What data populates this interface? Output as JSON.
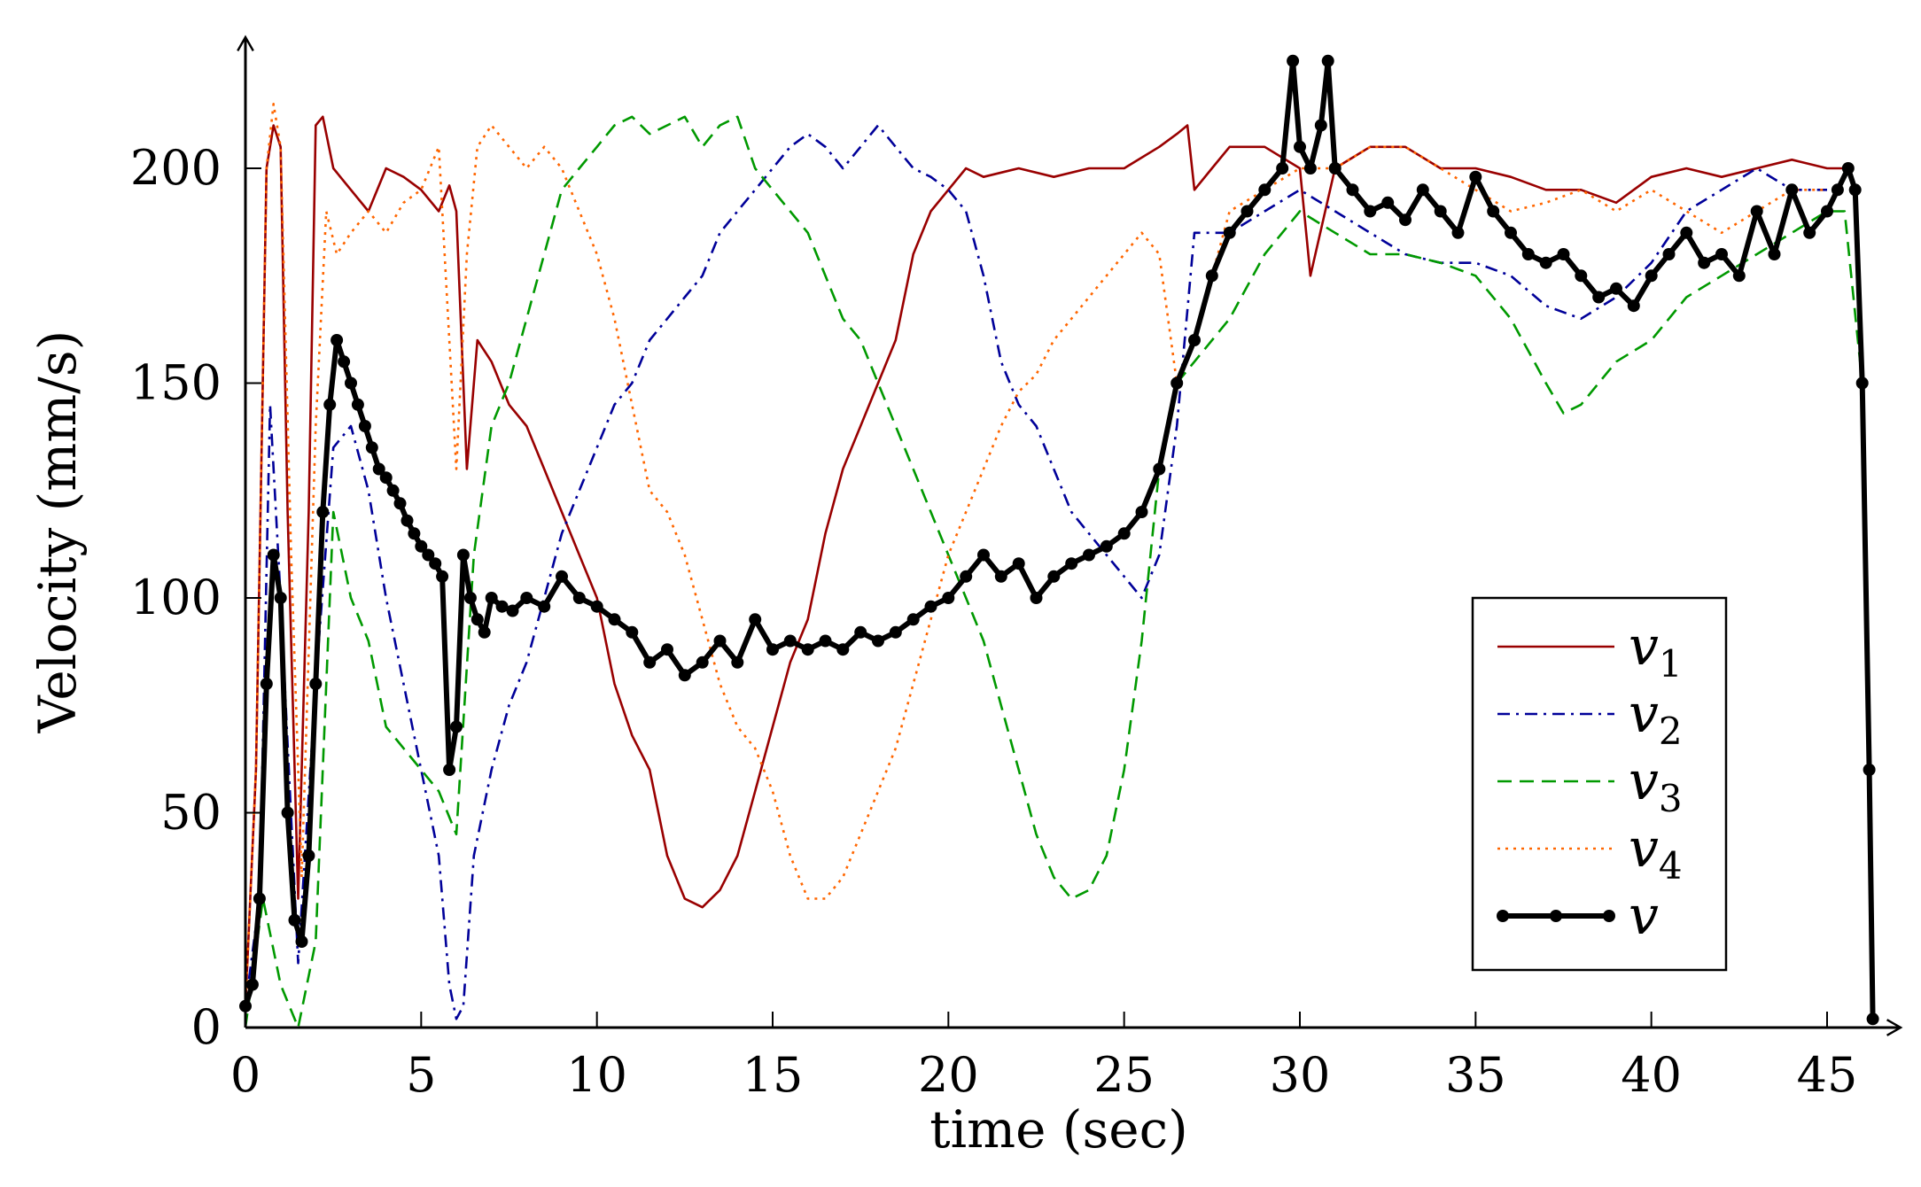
{
  "chart_data": {
    "type": "line",
    "title": "",
    "xlabel": "time (sec)",
    "ylabel": "Velocity (mm/s)",
    "xlim": [
      0,
      47
    ],
    "ylim": [
      0,
      220
    ],
    "xticks": [
      0,
      5,
      10,
      15,
      20,
      25,
      30,
      35,
      40,
      45
    ],
    "yticks": [
      0,
      50,
      100,
      150,
      200
    ],
    "legend_position": "bottom-right",
    "series": [
      {
        "name": "v1",
        "label_main": "v",
        "label_sub": "1",
        "color": "#990000",
        "style": "solid",
        "x": [
          0,
          0.3,
          0.6,
          0.8,
          1.0,
          1.2,
          1.5,
          1.8,
          2.0,
          2.2,
          2.5,
          3.0,
          3.5,
          4.0,
          4.5,
          5.0,
          5.5,
          5.8,
          6.0,
          6.3,
          6.6,
          7.0,
          7.5,
          8.0,
          8.5,
          9.0,
          9.5,
          10.0,
          10.5,
          11.0,
          11.5,
          12.0,
          12.5,
          13.0,
          13.5,
          14.0,
          14.5,
          15.0,
          15.5,
          16.0,
          16.5,
          17.0,
          17.5,
          18.0,
          18.5,
          19.0,
          19.5,
          20.0,
          20.5,
          21.0,
          22.0,
          23.0,
          24.0,
          25.0,
          26.0,
          26.5,
          26.8,
          27.0,
          27.5,
          28.0,
          29.0,
          30.0,
          30.3,
          31.0,
          32.0,
          33.0,
          34.0,
          35.0,
          36.0,
          37.0,
          38.0,
          39.0,
          40.0,
          41.0,
          42.0,
          43.0,
          44.0,
          45.0,
          45.5
        ],
        "y": [
          5,
          60,
          200,
          210,
          205,
          120,
          30,
          120,
          210,
          212,
          200,
          195,
          190,
          200,
          198,
          195,
          190,
          196,
          190,
          130,
          160,
          155,
          145,
          140,
          130,
          120,
          110,
          100,
          80,
          68,
          60,
          40,
          30,
          28,
          32,
          40,
          55,
          70,
          85,
          95,
          115,
          130,
          140,
          150,
          160,
          180,
          190,
          195,
          200,
          198,
          200,
          198,
          200,
          200,
          205,
          208,
          210,
          195,
          200,
          205,
          205,
          200,
          175,
          200,
          205,
          205,
          200,
          200,
          198,
          195,
          195,
          192,
          198,
          200,
          198,
          200,
          202,
          200,
          200
        ]
      },
      {
        "name": "v2",
        "label_main": "v",
        "label_sub": "2",
        "color": "#000099",
        "style": "dashdot",
        "x": [
          0,
          0.4,
          0.7,
          1.0,
          1.5,
          2.0,
          2.5,
          3.0,
          3.5,
          4.0,
          4.5,
          5.0,
          5.5,
          5.8,
          6.0,
          6.2,
          6.5,
          7.0,
          7.5,
          8.0,
          8.5,
          9.0,
          9.5,
          10.0,
          10.5,
          11.0,
          11.5,
          12.0,
          12.5,
          13.0,
          13.5,
          14.0,
          14.5,
          15.0,
          15.5,
          16.0,
          16.5,
          17.0,
          17.5,
          18.0,
          18.5,
          19.0,
          19.5,
          20.0,
          20.5,
          21.0,
          21.5,
          22.0,
          22.5,
          23.0,
          23.5,
          24.0,
          24.5,
          25.0,
          25.5,
          26.0,
          26.5,
          27.0,
          28.0,
          29.0,
          30.0,
          31.0,
          32.0,
          33.0,
          34.0,
          35.0,
          36.0,
          37.0,
          38.0,
          39.0,
          40.0,
          41.0,
          42.0,
          43.0,
          44.0,
          45.0
        ],
        "y": [
          5,
          30,
          145,
          100,
          15,
          80,
          135,
          140,
          125,
          100,
          80,
          60,
          40,
          10,
          2,
          5,
          40,
          60,
          75,
          85,
          100,
          115,
          125,
          135,
          145,
          150,
          160,
          165,
          170,
          175,
          185,
          190,
          195,
          200,
          205,
          208,
          205,
          200,
          205,
          210,
          205,
          200,
          198,
          195,
          190,
          175,
          155,
          145,
          140,
          130,
          120,
          115,
          110,
          105,
          100,
          110,
          140,
          185,
          185,
          190,
          195,
          190,
          185,
          180,
          178,
          178,
          175,
          168,
          165,
          170,
          178,
          190,
          195,
          200,
          195,
          195
        ]
      },
      {
        "name": "v3",
        "label_main": "v",
        "label_sub": "3",
        "color": "#009900",
        "style": "dashed",
        "x": [
          0,
          0.5,
          1.0,
          1.5,
          2.0,
          2.5,
          3.0,
          3.5,
          4.0,
          4.5,
          5.0,
          5.5,
          6.0,
          6.5,
          7.0,
          7.5,
          8.0,
          8.5,
          9.0,
          9.5,
          10.0,
          10.5,
          11.0,
          11.5,
          12.0,
          12.5,
          13.0,
          13.5,
          14.0,
          14.5,
          15.0,
          15.5,
          16.0,
          16.5,
          17.0,
          17.5,
          18.0,
          18.5,
          19.0,
          19.5,
          20.0,
          20.5,
          21.0,
          21.5,
          22.0,
          22.5,
          23.0,
          23.5,
          24.0,
          24.5,
          25.0,
          25.5,
          26.0,
          26.5,
          27.0,
          28.0,
          29.0,
          30.0,
          31.0,
          32.0,
          33.0,
          34.0,
          35.0,
          36.0,
          37.0,
          37.5,
          38.0,
          39.0,
          40.0,
          41.0,
          42.0,
          43.0,
          44.0,
          45.0,
          45.5,
          46.0
        ],
        "y": [
          0,
          30,
          10,
          0,
          20,
          120,
          100,
          90,
          70,
          65,
          60,
          55,
          45,
          110,
          140,
          150,
          165,
          180,
          195,
          200,
          205,
          210,
          212,
          208,
          210,
          212,
          205,
          210,
          212,
          200,
          195,
          190,
          185,
          175,
          165,
          160,
          150,
          140,
          130,
          120,
          110,
          100,
          90,
          75,
          60,
          45,
          35,
          30,
          32,
          40,
          60,
          90,
          130,
          150,
          155,
          165,
          180,
          190,
          185,
          180,
          180,
          178,
          175,
          165,
          150,
          143,
          145,
          155,
          160,
          170,
          175,
          180,
          185,
          190,
          190,
          150
        ]
      },
      {
        "name": "v4",
        "label_main": "v",
        "label_sub": "4",
        "color": "#ff6600",
        "style": "dotted",
        "x": [
          0,
          0.3,
          0.6,
          0.8,
          1.0,
          1.3,
          1.6,
          2.0,
          2.3,
          2.6,
          3.0,
          3.5,
          4.0,
          4.5,
          5.0,
          5.5,
          6.0,
          6.3,
          6.6,
          7.0,
          7.5,
          8.0,
          8.5,
          9.0,
          9.5,
          10.0,
          10.5,
          11.0,
          11.5,
          12.0,
          12.5,
          13.0,
          13.5,
          14.0,
          14.5,
          15.0,
          15.5,
          16.0,
          16.5,
          17.0,
          17.5,
          18.0,
          18.5,
          19.0,
          19.5,
          20.0,
          20.5,
          21.0,
          21.5,
          22.0,
          22.5,
          23.0,
          23.5,
          24.0,
          24.5,
          25.0,
          25.5,
          26.0,
          26.5,
          27.0,
          28.0,
          29.0,
          30.0,
          31.0,
          32.0,
          33.0,
          34.0,
          35.0,
          36.0,
          37.0,
          38.0,
          39.0,
          40.0,
          41.0,
          42.0,
          43.0,
          44.0,
          45.0
        ],
        "y": [
          5,
          60,
          200,
          215,
          205,
          110,
          35,
          140,
          190,
          180,
          185,
          190,
          185,
          192,
          195,
          205,
          130,
          180,
          205,
          210,
          205,
          200,
          205,
          200,
          190,
          180,
          165,
          145,
          125,
          120,
          110,
          95,
          80,
          70,
          65,
          55,
          40,
          30,
          30,
          35,
          45,
          55,
          65,
          80,
          95,
          110,
          120,
          130,
          140,
          148,
          152,
          160,
          165,
          170,
          175,
          180,
          185,
          180,
          150,
          160,
          190,
          195,
          200,
          200,
          205,
          205,
          200,
          195,
          190,
          192,
          195,
          190,
          195,
          190,
          185,
          190,
          195,
          195
        ]
      },
      {
        "name": "v",
        "label_main": "v",
        "label_sub": "",
        "color": "#000000",
        "style": "solid-marked",
        "x": [
          0,
          0.2,
          0.4,
          0.6,
          0.8,
          1.0,
          1.2,
          1.4,
          1.6,
          1.8,
          2.0,
          2.2,
          2.4,
          2.6,
          2.8,
          3.0,
          3.2,
          3.4,
          3.6,
          3.8,
          4.0,
          4.2,
          4.4,
          4.6,
          4.8,
          5.0,
          5.2,
          5.4,
          5.6,
          5.8,
          6.0,
          6.2,
          6.4,
          6.6,
          6.8,
          7.0,
          7.3,
          7.6,
          8.0,
          8.5,
          9.0,
          9.5,
          10.0,
          10.5,
          11.0,
          11.5,
          12.0,
          12.5,
          13.0,
          13.5,
          14.0,
          14.5,
          15.0,
          15.5,
          16.0,
          16.5,
          17.0,
          17.5,
          18.0,
          18.5,
          19.0,
          19.5,
          20.0,
          20.5,
          21.0,
          21.5,
          22.0,
          22.5,
          23.0,
          23.5,
          24.0,
          24.5,
          25.0,
          25.5,
          26.0,
          26.5,
          27.0,
          27.5,
          28.0,
          28.5,
          29.0,
          29.5,
          29.8,
          30.0,
          30.3,
          30.6,
          30.8,
          31.0,
          31.5,
          32.0,
          32.5,
          33.0,
          33.5,
          34.0,
          34.5,
          35.0,
          35.5,
          36.0,
          36.5,
          37.0,
          37.5,
          38.0,
          38.5,
          39.0,
          39.5,
          40.0,
          40.5,
          41.0,
          41.5,
          42.0,
          42.5,
          43.0,
          43.5,
          44.0,
          44.5,
          45.0,
          45.3,
          45.6,
          45.8,
          46.0,
          46.2,
          46.3
        ],
        "y": [
          5,
          10,
          30,
          80,
          110,
          100,
          50,
          25,
          20,
          40,
          80,
          120,
          145,
          160,
          155,
          150,
          145,
          140,
          135,
          130,
          128,
          125,
          122,
          118,
          115,
          112,
          110,
          108,
          105,
          60,
          70,
          110,
          100,
          95,
          92,
          100,
          98,
          97,
          100,
          98,
          105,
          100,
          98,
          95,
          92,
          85,
          88,
          82,
          85,
          90,
          85,
          95,
          88,
          90,
          88,
          90,
          88,
          92,
          90,
          92,
          95,
          98,
          100,
          105,
          110,
          105,
          108,
          100,
          105,
          108,
          110,
          112,
          115,
          120,
          130,
          150,
          160,
          175,
          185,
          190,
          195,
          200,
          225,
          205,
          200,
          210,
          225,
          200,
          195,
          190,
          192,
          188,
          195,
          190,
          185,
          198,
          190,
          185,
          180,
          178,
          180,
          175,
          170,
          172,
          168,
          175,
          180,
          185,
          178,
          180,
          175,
          190,
          180,
          195,
          185,
          190,
          195,
          200,
          195,
          150,
          60,
          2
        ]
      }
    ]
  }
}
